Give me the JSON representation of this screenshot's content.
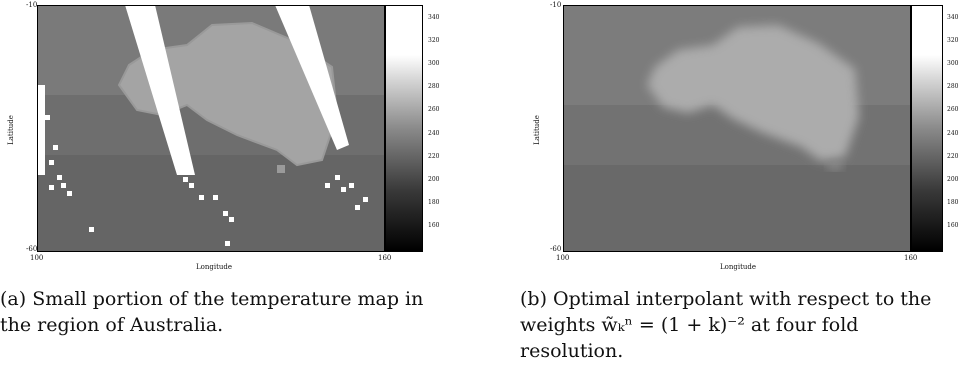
{
  "panel_a": {
    "x_min_label": "100",
    "x_max_label": "160",
    "y_min_label": "-60",
    "y_max_label": "-10",
    "xlabel": "Longitude",
    "ylabel": "Latitude",
    "colorbar_ticks": [
      "340",
      "320",
      "300",
      "280",
      "260",
      "240",
      "220",
      "200",
      "180",
      "160"
    ],
    "caption": "(a) Small portion of the temperature map in the region of Australia."
  },
  "panel_b": {
    "x_min_label": "100",
    "x_max_label": "160",
    "y_min_label": "-60",
    "y_max_label": "-10",
    "xlabel": "Longitude",
    "ylabel": "Latitude",
    "colorbar_ticks": [
      "340",
      "320",
      "300",
      "280",
      "260",
      "240",
      "220",
      "200",
      "180",
      "160"
    ],
    "caption": "(b) Optimal interpolant with respect to the weights w̃ₖⁿ = (1 + k)⁻² at four fold resolution."
  }
}
